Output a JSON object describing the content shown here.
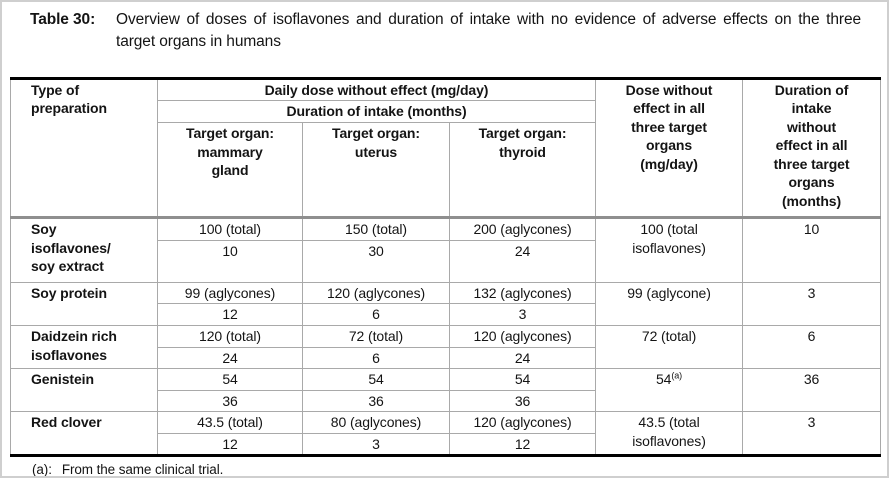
{
  "title": {
    "label": "Table 30:",
    "text": "Overview of doses of isoflavones and duration of intake with no evidence of adverse effects on the three target organs in humans"
  },
  "table": {
    "headers": {
      "type_of_preparation": "Type of\npreparation",
      "daily_dose": "Daily dose without effect (mg/day)",
      "duration_intake": "Duration of intake (months)",
      "organ_mammary": "Target organ:\nmammary\ngland",
      "organ_uterus": "Target organ:\nuterus",
      "organ_thyroid": "Target organ:\nthyroid",
      "dose_all": "Dose without\neffect in all\nthree target\norgans\n(mg/day)",
      "duration_all": "Duration of\nintake\nwithout\neffect in all\nthree target\norgans\n(months)"
    },
    "groups": [
      {
        "name": "Soy\nisoflavones/\nsoy extract",
        "doses": [
          "100 (total)",
          "150 (total)",
          "200 (aglycones)"
        ],
        "months": [
          "10",
          "30",
          "24"
        ],
        "all_dose": "100 (total\nisoflavones)",
        "all_duration": "10"
      },
      {
        "name": "Soy protein",
        "doses": [
          "99 (aglycones)",
          "120 (aglycones)",
          "132 (aglycones)"
        ],
        "months": [
          "12",
          "6",
          "3"
        ],
        "all_dose": "99 (aglycone)",
        "all_duration": "3"
      },
      {
        "name": "Daidzein rich\nisoflavones",
        "doses": [
          "120 (total)",
          "72 (total)",
          "120 (aglycones)"
        ],
        "months": [
          "24",
          "6",
          "24"
        ],
        "all_dose": "72 (total)",
        "all_duration": "6"
      },
      {
        "name": "Genistein",
        "doses": [
          "54",
          "54",
          "54"
        ],
        "months": [
          "36",
          "36",
          "36"
        ],
        "all_dose": "54",
        "all_dose_sup": "(a)",
        "all_duration": "36"
      },
      {
        "name": "Red clover",
        "doses": [
          "43.5 (total)",
          "80 (aglycones)",
          "120 (aglycones)"
        ],
        "months": [
          "12",
          "3",
          "12"
        ],
        "all_dose": "43.5 (total\nisoflavones)",
        "all_duration": "3"
      }
    ]
  },
  "footnote": {
    "label": "(a):",
    "text": "From the same clinical trial."
  }
}
